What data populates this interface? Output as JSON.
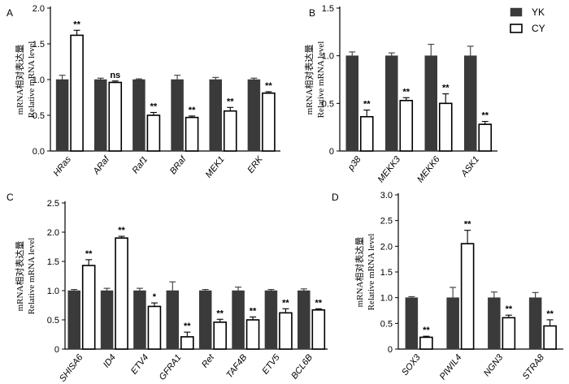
{
  "legend": {
    "entries": [
      {
        "name": "YK",
        "color": "#3a3a3a"
      },
      {
        "name": "CY",
        "color": "#ffffff"
      }
    ]
  },
  "chart_data": [
    {
      "type": "bar",
      "panel": "A",
      "ylabel_cn": "mRNA相对表达量",
      "ylabel": "Relative mRNA level",
      "ylim": [
        0,
        2.0
      ],
      "yticks": [
        "0.0",
        "0.5",
        "1.0",
        "1.5",
        "2.0"
      ],
      "categories": [
        "HRas",
        "ARaf",
        "Raf1",
        "BRaf",
        "MEK1",
        "ERK"
      ],
      "series": [
        {
          "name": "YK",
          "values": [
            1.0,
            1.0,
            1.0,
            1.0,
            1.0,
            1.0
          ],
          "errors": [
            0.06,
            0.02,
            0.01,
            0.06,
            0.03,
            0.02
          ]
        },
        {
          "name": "CY",
          "values": [
            1.62,
            0.96,
            0.5,
            0.47,
            0.56,
            0.81
          ],
          "errors": [
            0.07,
            0.02,
            0.04,
            0.02,
            0.05,
            0.02
          ]
        }
      ],
      "significance": [
        "**",
        "ns",
        "**",
        "**",
        "**",
        "**"
      ]
    },
    {
      "type": "bar",
      "panel": "B",
      "ylabel_cn": "mRNA相对表达量",
      "ylabel": "Relative mRNA level",
      "ylim": [
        0,
        1.5
      ],
      "yticks": [
        "0",
        "0.5",
        "1.0",
        "1.5"
      ],
      "categories": [
        "p38",
        "MEKK3",
        "MEKK6",
        "ASK1"
      ],
      "series": [
        {
          "name": "YK",
          "values": [
            1.0,
            1.0,
            1.0,
            1.0
          ],
          "errors": [
            0.04,
            0.03,
            0.12,
            0.1
          ]
        },
        {
          "name": "CY",
          "values": [
            0.36,
            0.53,
            0.5,
            0.28
          ],
          "errors": [
            0.07,
            0.03,
            0.1,
            0.03
          ]
        }
      ],
      "significance": [
        "**",
        "**",
        "**",
        "**"
      ]
    },
    {
      "type": "bar",
      "panel": "C",
      "ylabel_cn": "mRNA相对表达量",
      "ylabel": "Relative mRNA level",
      "ylim": [
        0,
        2.5
      ],
      "yticks": [
        "0",
        "0.5",
        "1.0",
        "1.5",
        "2.0",
        "2.5"
      ],
      "categories": [
        "SHISA6",
        "ID4",
        "ETV4",
        "GFRA1",
        "Ret",
        "TAF4B",
        "ETV5",
        "BCL6B"
      ],
      "series": [
        {
          "name": "YK",
          "values": [
            1.0,
            1.0,
            1.0,
            1.0,
            1.0,
            1.0,
            1.0,
            1.0
          ],
          "errors": [
            0.02,
            0.04,
            0.04,
            0.15,
            0.02,
            0.06,
            0.02,
            0.03
          ]
        },
        {
          "name": "CY",
          "values": [
            1.43,
            1.9,
            0.73,
            0.21,
            0.46,
            0.5,
            0.62,
            0.67
          ],
          "errors": [
            0.1,
            0.03,
            0.06,
            0.08,
            0.05,
            0.05,
            0.07,
            0.02
          ]
        }
      ],
      "significance": [
        "**",
        "**",
        "*",
        "**",
        "**",
        "**",
        "**",
        "**"
      ]
    },
    {
      "type": "bar",
      "panel": "D",
      "ylabel_cn": "mRNA相对表达量",
      "ylabel": "Relative mRNA level",
      "ylim": [
        0,
        3.0
      ],
      "yticks": [
        "0",
        "0.5",
        "1.0",
        "1.5",
        "2.0",
        "2.5",
        "3.0"
      ],
      "categories": [
        "SOX3",
        "PIWIL4",
        "NGN3",
        "STRA8"
      ],
      "series": [
        {
          "name": "YK",
          "values": [
            1.0,
            1.0,
            1.0,
            1.0
          ],
          "errors": [
            0.02,
            0.2,
            0.11,
            0.1
          ]
        },
        {
          "name": "CY",
          "values": [
            0.23,
            2.05,
            0.61,
            0.45
          ],
          "errors": [
            0.02,
            0.26,
            0.05,
            0.12
          ]
        }
      ],
      "significance": [
        "**",
        "**",
        "**",
        "**"
      ]
    }
  ]
}
